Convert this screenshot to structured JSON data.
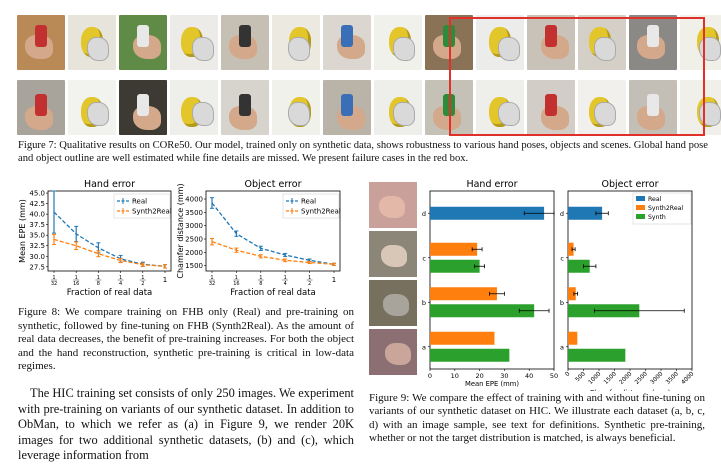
{
  "fig7": {
    "caption": "Figure 7: Qualitative results on CORe50. Our model, trained only on synthetic data, shows robustness to various hand poses, objects and scenes. Global hand pose and object outline are well estimated while fine details are missed. We present failure cases in the red box.",
    "row1_bg": [
      "#b98a56",
      "#e7e4dc",
      "#5f8b46",
      "#ecebe7",
      "#c6c0b4",
      "#ece9e0",
      "#dbd6cf",
      "#f1f1ec",
      "#8a7257",
      "#ececea",
      "#c8c2b8",
      "#d4d0c8",
      "#8b8986",
      "#f0efe8"
    ],
    "row2_bg": [
      "#a8a49c",
      "#f2f2ee",
      "#3d3a33",
      "#eeeeeb",
      "#d7d3cd",
      "#f1f1ec",
      "#b9b3a8",
      "#eeeeea",
      "#c6c1b6",
      "#eeeeea",
      "#d2cec7",
      "#f1f0ec",
      "#c4bfb6",
      "#f0efea"
    ]
  },
  "fig8": {
    "hand_chart": {
      "chart_data": {
        "type": "line",
        "title": "Hand error",
        "xlabel": "Fraction of real data",
        "ylabel": "Mean EPE (mm)",
        "x_ticks": [
          "1/32",
          "1/16",
          "1/8",
          "1/4",
          "1/2",
          "1"
        ],
        "y_ticks": [
          "27.5",
          "30.0",
          "32.5",
          "35.0",
          "37.5",
          "40.0",
          "42.5",
          "45.0"
        ],
        "ylim": [
          26.5,
          45.5
        ],
        "series": [
          {
            "name": "Real",
            "color": "#1f77b4",
            "values": [
              40.5,
              35.3,
              32.0,
              29.4,
              28.1,
              27.6
            ],
            "errors": [
              5.0,
              1.8,
              1.2,
              0.8,
              0.5,
              0.4
            ]
          },
          {
            "name": "Synth2Real",
            "color": "#ff7f0e",
            "values": [
              34.0,
              32.5,
              30.6,
              29.0,
              28.0,
              27.6
            ],
            "errors": [
              1.2,
              0.9,
              0.7,
              0.5,
              0.4,
              0.4
            ]
          }
        ],
        "legend": "top-right",
        "grid": false
      }
    },
    "object_chart": {
      "chart_data": {
        "type": "line",
        "title": "Object error",
        "xlabel": "Fraction of real data",
        "ylabel": "Chamfer distance (mm)",
        "x_ticks": [
          "1/32",
          "1/16",
          "1/8",
          "1/4",
          "1/2",
          "1"
        ],
        "y_ticks": [
          "1500",
          "2000",
          "2500",
          "3000",
          "3500",
          "4000"
        ],
        "ylim": [
          1300,
          4300
        ],
        "series": [
          {
            "name": "Real",
            "color": "#1f77b4",
            "values": [
              3850,
              2700,
              2150,
              1900,
              1700,
              1550
            ],
            "errors": [
              200,
              100,
              80,
              60,
              50,
              40
            ]
          },
          {
            "name": "Synth2Real",
            "color": "#ff7f0e",
            "values": [
              2400,
              2080,
              1850,
              1700,
              1620,
              1550
            ],
            "errors": [
              120,
              80,
              60,
              50,
              40,
              40
            ]
          }
        ],
        "legend": "top-right",
        "grid": false
      }
    },
    "caption": "Figure 8: We compare training on FHB only (Real) and pre-training on synthetic, followed by fine-tuning on FHB (Synth2Real). As the amount of real data decreases, the benefit of pre-training increases. For both the object and the hand reconstruction, synthetic pre-training is critical in low-data regimes."
  },
  "fig9": {
    "images": [
      "#c9a09a",
      "#8c8679",
      "#77705f",
      "#8c6f72"
    ],
    "hand_chart": {
      "chart_data": {
        "type": "bar",
        "title": "Hand error",
        "xlabel": "Mean EPE (mm)",
        "categories": [
          "d",
          "c",
          "b",
          "a"
        ],
        "x_ticks": [
          "0",
          "10",
          "20",
          "30",
          "40",
          "50"
        ],
        "xlim": [
          0,
          50
        ],
        "series": [
          {
            "name": "Real",
            "color": "#1f77b4",
            "values": [
              46,
              null,
              null,
              null
            ],
            "errors": [
              8,
              null,
              null,
              null
            ]
          },
          {
            "name": "Synth2Real",
            "color": "#ff7f0e",
            "values": [
              null,
              19,
              27,
              26
            ],
            "errors": [
              null,
              2,
              3,
              0
            ]
          },
          {
            "name": "Synth",
            "color": "#2ca02c",
            "values": [
              null,
              20,
              42,
              32
            ],
            "errors": [
              null,
              2,
              6,
              0
            ]
          }
        ]
      }
    },
    "object_chart": {
      "chart_data": {
        "type": "bar",
        "title": "Object error",
        "xlabel": "Chamfer distance (mm)",
        "categories": [
          "d",
          "c",
          "b",
          "a"
        ],
        "x_ticks": [
          "0",
          "500",
          "1000",
          "1500",
          "2000",
          "2500",
          "3000",
          "3500",
          "4000"
        ],
        "xlim": [
          0,
          4000
        ],
        "series": [
          {
            "name": "Real",
            "color": "#1f77b4",
            "values": [
              1100,
              null,
              null,
              null
            ],
            "errors": [
              200,
              null,
              null,
              null
            ]
          },
          {
            "name": "Synth2Real",
            "color": "#ff7f0e",
            "values": [
              null,
              180,
              250,
              300
            ],
            "errors": [
              null,
              50,
              60,
              0
            ]
          },
          {
            "name": "Synth",
            "color": "#2ca02c",
            "values": [
              null,
              700,
              2300,
              1850
            ],
            "errors": [
              null,
              200,
              1450,
              0
            ]
          }
        ],
        "legend": [
          "Real",
          "Synth2Real",
          "Synth"
        ],
        "legend_position": "top-right"
      }
    },
    "caption": "Figure 9: We compare the effect of training with and without fine-tuning on variants of our synthetic dataset on HIC. We illustrate each dataset (a, b, c, d) with an image sample, see text for definitions. Synthetic pre-training, whether or not the target distribution is matched, is always beneficial."
  },
  "body": {
    "p1": "The HIC training set consists of only 250 images. We experiment with pre-training on variants of our synthetic dataset. In addition to ObMan, to which we refer as (a) in Figure 9, we render 20K images for two additional synthetic datasets, (b) and (c), which leverage information from"
  }
}
